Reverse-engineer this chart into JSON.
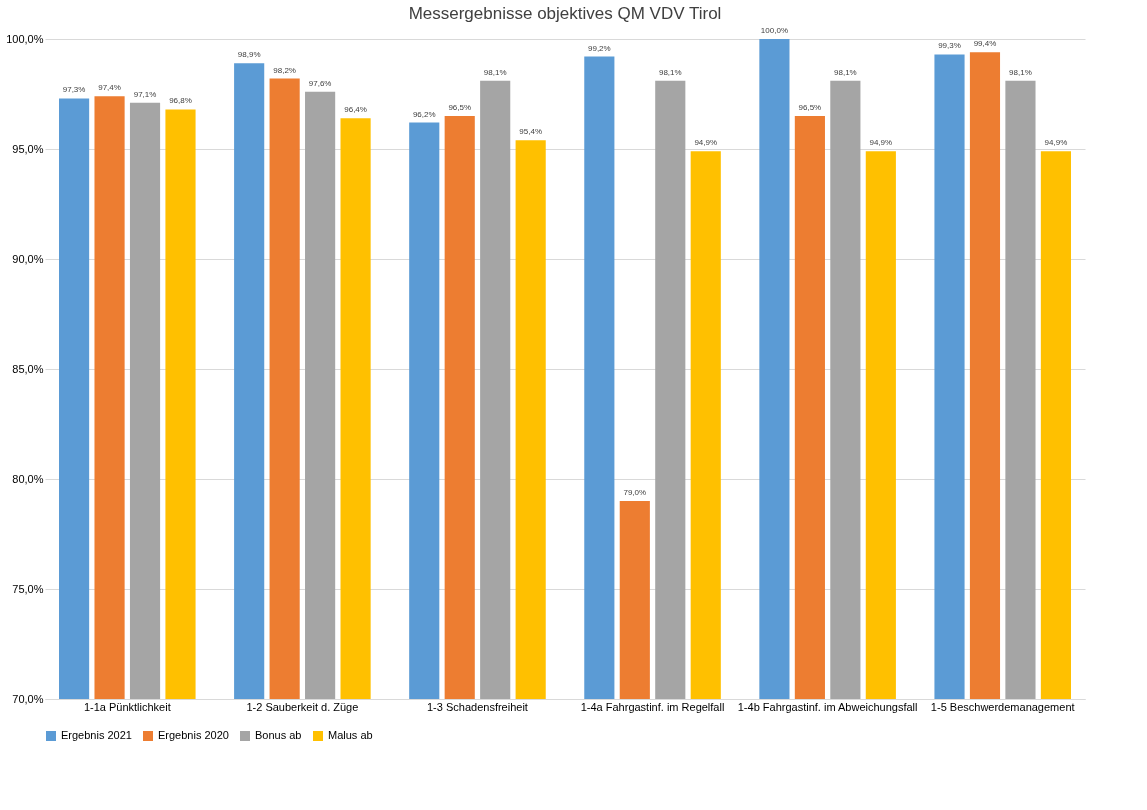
{
  "chart_data": {
    "type": "bar",
    "title": "Messergebnisse objektives QM VDV Tirol",
    "categories": [
      "1-1a Pünktlichkeit",
      "1-2 Sauberkeit d. Züge",
      "1-3 Schadensfreiheit",
      "1-4a Fahrgastinf. im Regelfall",
      "1-4b Fahrgastinf. im Abweichungsfall",
      "1-5 Beschwerdemanagement"
    ],
    "series": [
      {
        "name": "Ergebnis 2021",
        "color": "#5b9bd5",
        "values": [
          97.3,
          98.9,
          96.2,
          99.2,
          100.0,
          99.3
        ],
        "value_labels": [
          "97,3%",
          "98,9%",
          "96,2%",
          "99,2%",
          "100,0%",
          "99,3%"
        ]
      },
      {
        "name": "Ergebnis 2020",
        "color": "#ed7d31",
        "values": [
          97.4,
          98.2,
          96.5,
          79.0,
          96.5,
          99.4
        ],
        "value_labels": [
          "97,4%",
          "98,2%",
          "96,5%",
          "79,0%",
          "96,5%",
          "99,4%"
        ]
      },
      {
        "name": "Bonus ab",
        "color": "#a5a5a5",
        "values": [
          97.1,
          97.6,
          98.1,
          98.1,
          98.1,
          98.1
        ],
        "value_labels": [
          "97,1%",
          "97,6%",
          "98,1%",
          "98,1%",
          "98,1%",
          "98,1%"
        ]
      },
      {
        "name": "Malus ab",
        "color": "#ffc000",
        "values": [
          96.8,
          96.4,
          95.4,
          94.9,
          94.9,
          94.9
        ],
        "value_labels": [
          "96,8%",
          "96,4%",
          "95,4%",
          "94,9%",
          "94,9%",
          "94,9%"
        ]
      }
    ],
    "ylim": [
      70,
      100
    ],
    "yticks": [
      {
        "value": 70,
        "label": "70,0%"
      },
      {
        "value": 75,
        "label": "75,0%"
      },
      {
        "value": 80,
        "label": "80,0%"
      },
      {
        "value": 85,
        "label": "85,0%"
      },
      {
        "value": 90,
        "label": "90,0%"
      },
      {
        "value": 95,
        "label": "95,0%"
      },
      {
        "value": 100,
        "label": "100,0%"
      }
    ],
    "grid": "y",
    "legend": "bottom"
  }
}
